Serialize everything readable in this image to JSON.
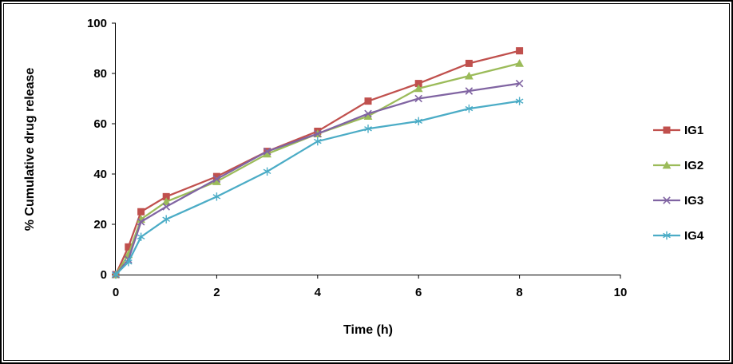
{
  "frame": {
    "background": "#ffffff",
    "border_color": "#000000"
  },
  "chart_data": {
    "type": "line",
    "title": "",
    "xlabel": "Time (h)",
    "ylabel": "% Cumulative drug release",
    "xlim": [
      0,
      10
    ],
    "ylim": [
      0,
      100
    ],
    "x_ticks": [
      0,
      2,
      4,
      6,
      8,
      10
    ],
    "y_ticks": [
      0,
      20,
      40,
      60,
      80,
      100
    ],
    "grid": false,
    "legend_position": "right",
    "x": [
      0,
      0.25,
      0.5,
      1,
      2,
      3,
      4,
      5,
      6,
      7,
      8
    ],
    "series": [
      {
        "name": "IG1",
        "color": "#c0504d",
        "marker": "square",
        "values": [
          0,
          11,
          25,
          31,
          39,
          49,
          57,
          69,
          76,
          84,
          89
        ]
      },
      {
        "name": "IG2",
        "color": "#9bbb59",
        "marker": "triangle",
        "values": [
          0,
          8,
          22,
          29,
          37,
          48,
          56,
          63,
          74,
          79,
          84
        ]
      },
      {
        "name": "IG3",
        "color": "#8064a2",
        "marker": "x",
        "values": [
          0,
          6,
          21,
          27,
          38,
          49,
          56,
          64,
          70,
          73,
          76
        ]
      },
      {
        "name": "IG4",
        "color": "#4bacc6",
        "marker": "asterisk",
        "values": [
          0,
          5,
          15,
          22,
          31,
          41,
          53,
          58,
          61,
          66,
          69
        ]
      }
    ]
  }
}
